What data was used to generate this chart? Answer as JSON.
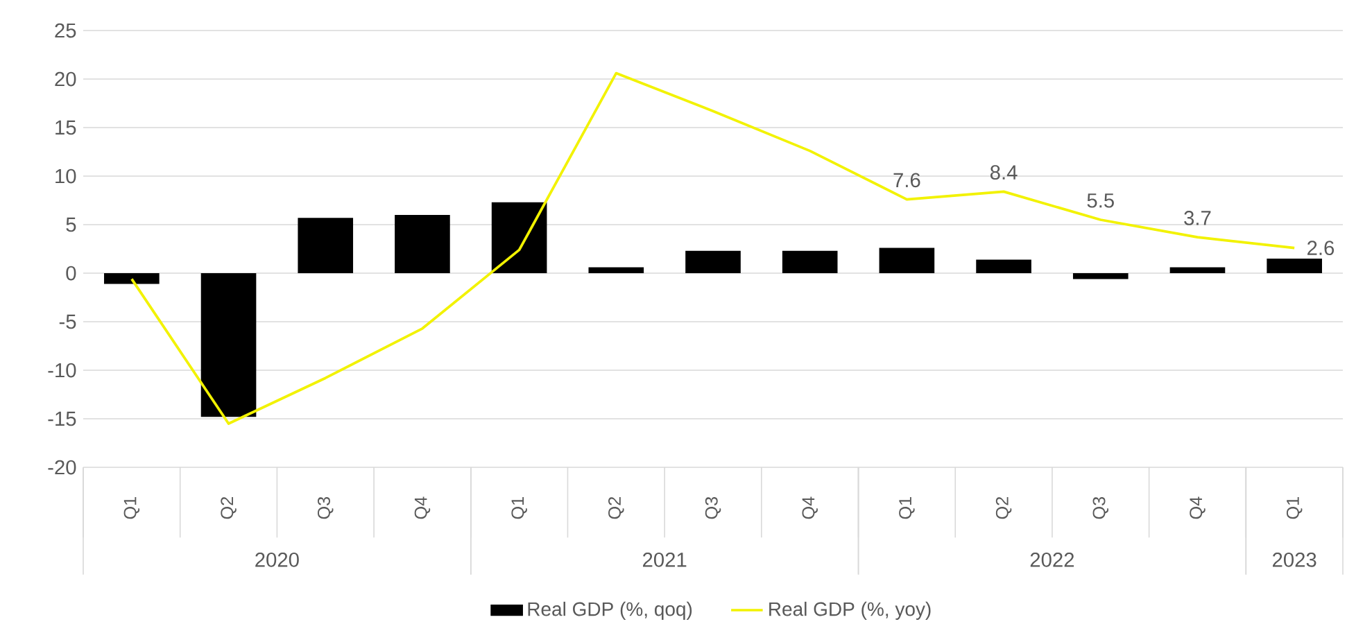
{
  "chart_data": {
    "type": "bar",
    "categories": [
      "Q1",
      "Q2",
      "Q3",
      "Q4",
      "Q1",
      "Q2",
      "Q3",
      "Q4",
      "Q1",
      "Q2",
      "Q3",
      "Q4",
      "Q1"
    ],
    "annotations": [
      "2020",
      "2021",
      "2022",
      "2023"
    ],
    "series": [
      {
        "name": "Real GDP (%, qoq)",
        "color": "#000000",
        "values": [
          -1.1,
          -14.8,
          5.7,
          6.0,
          7.3,
          0.6,
          2.3,
          2.3,
          2.6,
          1.4,
          -0.6,
          0.6,
          1.5
        ]
      },
      {
        "name": "Real GDP (%, yoy)",
        "type": "line",
        "color": "#f2f200",
        "values": [
          -0.6,
          -15.5,
          -10.8,
          -5.7,
          2.4,
          20.6,
          16.7,
          12.6,
          7.6,
          8.4,
          5.5,
          3.7,
          2.6
        ],
        "value_labels": [
          null,
          null,
          null,
          null,
          null,
          null,
          null,
          null,
          "7.6",
          "8.4",
          "5.5",
          "3.7",
          "2.6"
        ]
      }
    ],
    "ylim": [
      -20,
      25
    ],
    "yticks": [
      -20,
      -15,
      -10,
      -5,
      0,
      5,
      10,
      15,
      20,
      25
    ],
    "grid": "y",
    "legend": "bottom"
  }
}
